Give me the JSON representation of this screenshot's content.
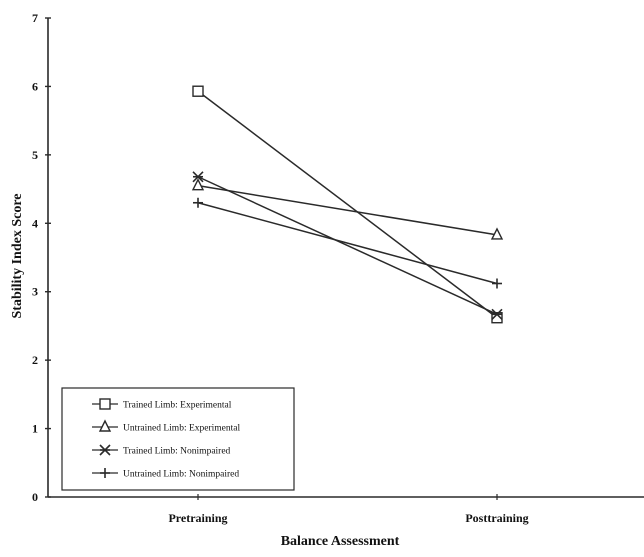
{
  "chart_data": {
    "type": "line",
    "title": "",
    "xlabel": "Balance Assessment",
    "ylabel": "Stability Index Score",
    "categories": [
      "Pretraining",
      "Posttraining"
    ],
    "ylim": [
      0,
      7
    ],
    "yticks": [
      "0",
      "1",
      "2",
      "3",
      "4",
      "5",
      "6",
      "7"
    ],
    "grid": false,
    "legend_position": "bottom-left",
    "series": [
      {
        "name": "Trained Limb: Experimental",
        "marker": "square",
        "values": [
          5.93,
          2.62
        ]
      },
      {
        "name": "Untrained Limb: Experimental",
        "marker": "triangle",
        "values": [
          4.55,
          3.83
        ]
      },
      {
        "name": "Trained Limb: Nonimpaired",
        "marker": "x-bar",
        "values": [
          4.68,
          2.67
        ]
      },
      {
        "name": "Untrained Limb: Nonimpaired",
        "marker": "plus",
        "values": [
          4.3,
          3.12
        ]
      }
    ],
    "colors": {
      "line": "#2a2a2a",
      "background": "#ffffff"
    }
  }
}
